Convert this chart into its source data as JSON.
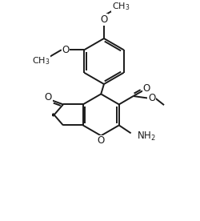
{
  "background_color": "#ffffff",
  "line_color": "#1a1a1a",
  "line_width": 1.4,
  "font_size": 8.5,
  "figsize": [
    2.5,
    2.76
  ],
  "dpi": 100,
  "xlim": [
    0,
    10
  ],
  "ylim": [
    0,
    11
  ]
}
